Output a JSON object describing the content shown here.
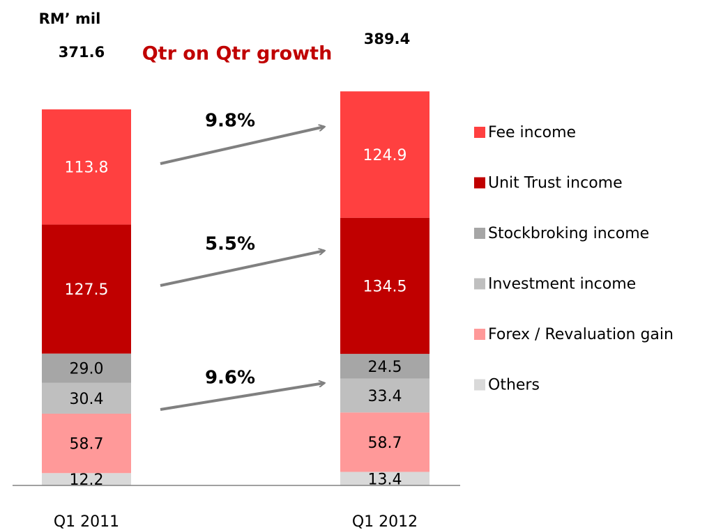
{
  "chart_data": {
    "type": "stacked_bar",
    "title": "Qtr on Qtr growth",
    "unit_label": "RM’ mil",
    "categories": [
      "Q1 2011",
      "Q1 2012"
    ],
    "totals": [
      371.6,
      389.4
    ],
    "annotations": [
      "9.8%",
      "5.5%",
      "9.6%"
    ],
    "series": [
      {
        "name": "Fee income",
        "color": "#ff4040",
        "label_color": "#ffffff",
        "values": [
          113.8,
          124.9
        ]
      },
      {
        "name": "Unit Trust income",
        "color": "#c00000",
        "label_color": "#ffffff",
        "values": [
          127.5,
          134.5
        ]
      },
      {
        "name": "Stockbroking income",
        "color": "#a6a6a6",
        "label_color": "#000000",
        "values": [
          29,
          24.5
        ],
        "value_labels": [
          "29.0",
          "24.5"
        ]
      },
      {
        "name": "Investment income",
        "color": "#bfbfbf",
        "label_color": "#000000",
        "values": [
          30.4,
          33.4
        ]
      },
      {
        "name": "Forex / Revaluation gain",
        "color": "#ff9999",
        "label_color": "#000000",
        "values": [
          58.7,
          58.7
        ]
      },
      {
        "name": "Others",
        "color": "#d9d9d9",
        "label_color": "#000000",
        "values": [
          12.2,
          13.4
        ]
      }
    ],
    "legend": "right"
  }
}
